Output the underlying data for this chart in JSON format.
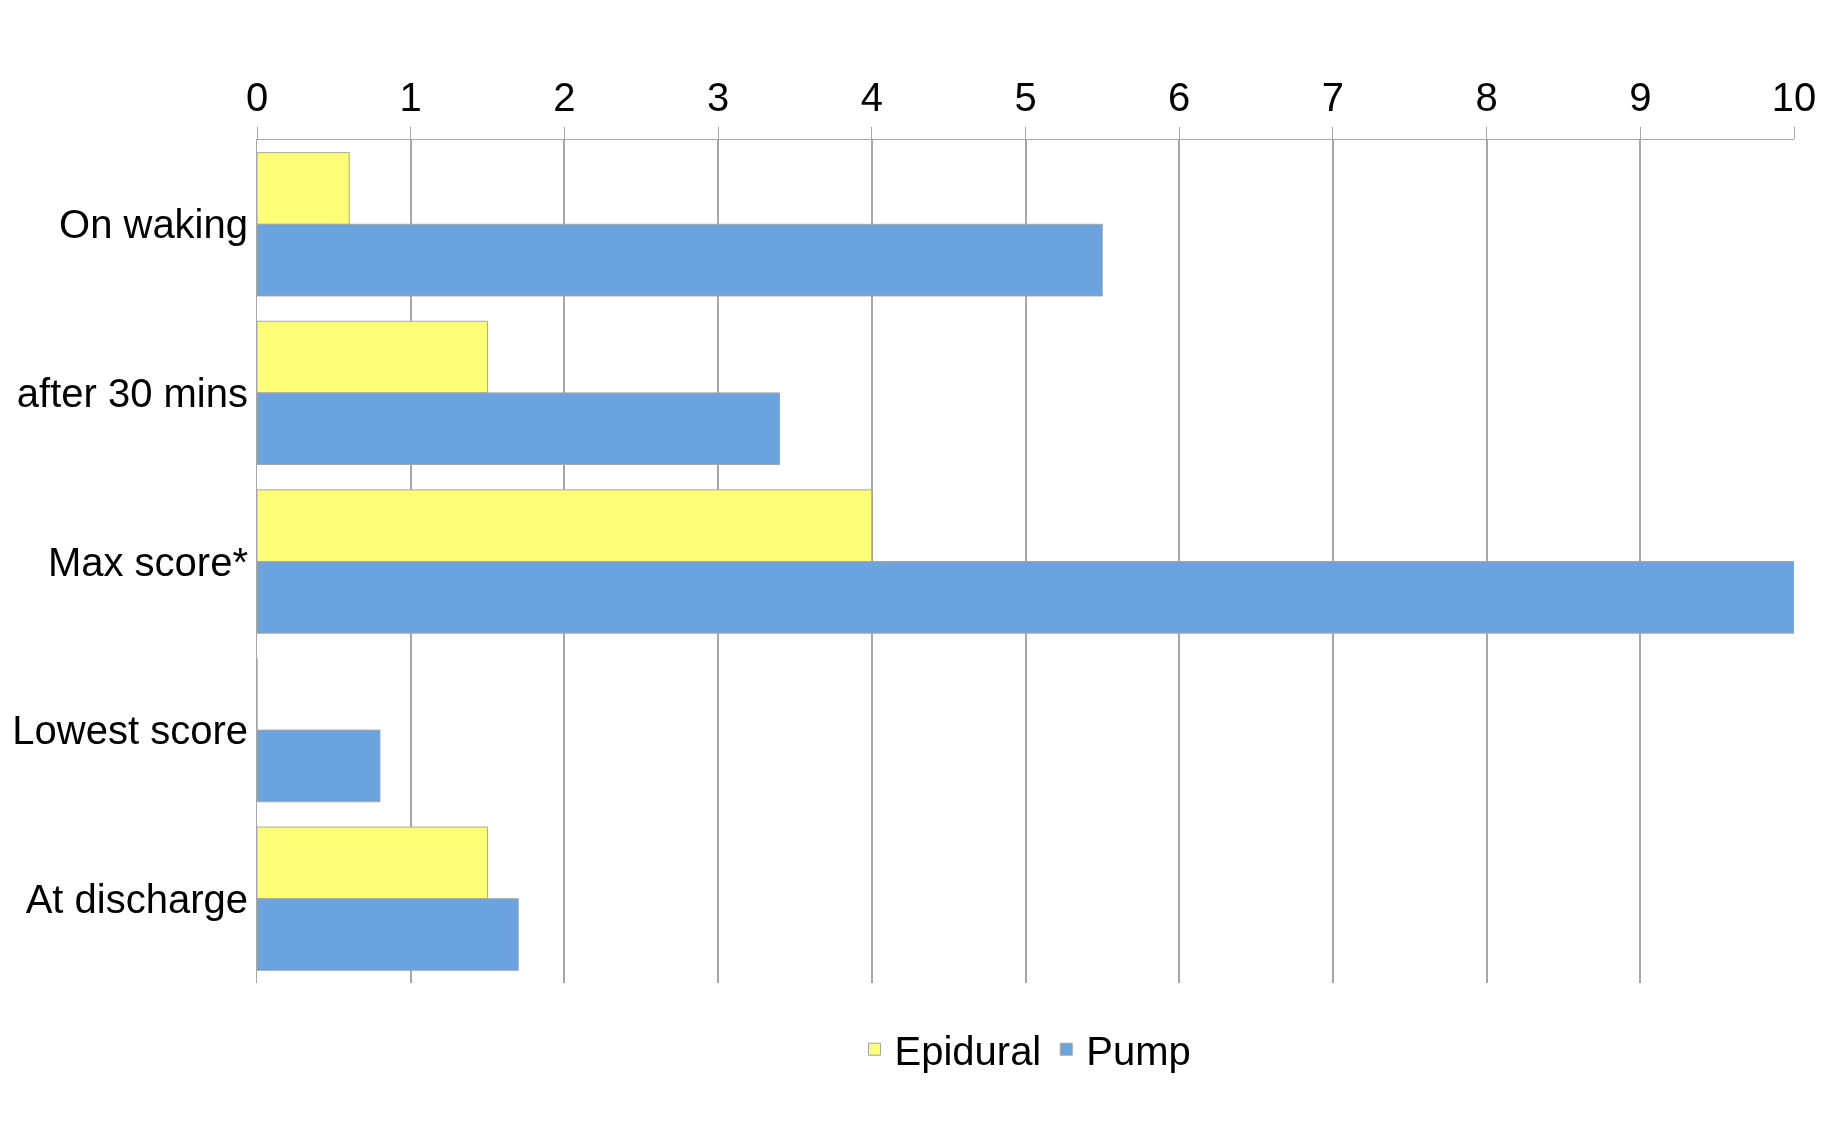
{
  "chart_data": {
    "type": "bar",
    "orientation": "horizontal",
    "categories": [
      "On waking",
      "after 30 mins",
      "Max score*",
      "Lowest score",
      "At discharge"
    ],
    "series": [
      {
        "name": "Epidural",
        "color": "#ffff77",
        "values": [
          0.6,
          1.5,
          4.0,
          0,
          1.5
        ]
      },
      {
        "name": "Pump",
        "color": "#6aa3de",
        "values": [
          5.5,
          3.4,
          10,
          0.8,
          1.7
        ]
      }
    ],
    "xlim": [
      0,
      10
    ],
    "xticks": [
      0,
      1,
      2,
      3,
      4,
      5,
      6,
      7,
      8,
      9,
      10
    ],
    "grid": "x",
    "legend": "bottom"
  }
}
